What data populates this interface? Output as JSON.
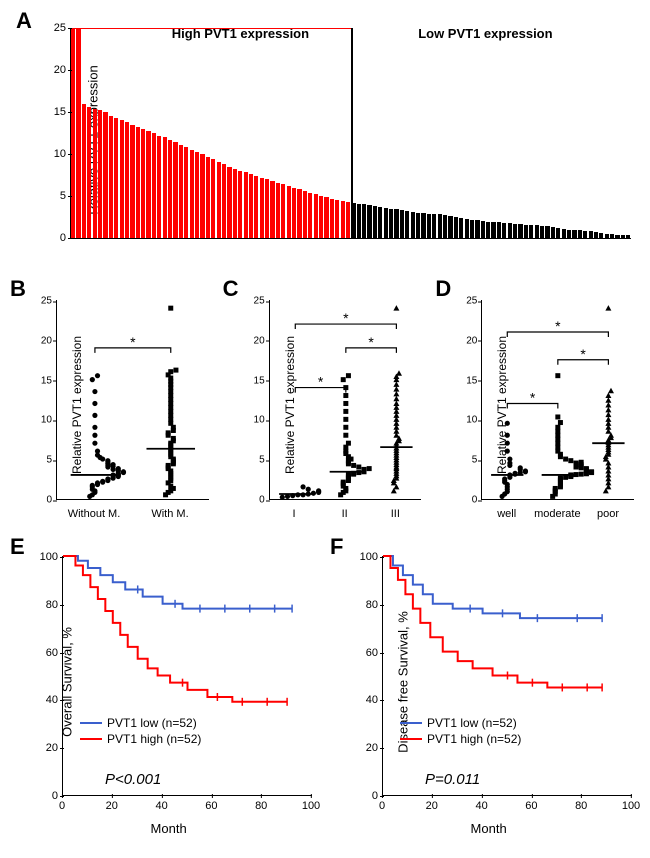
{
  "colors": {
    "high": "#ff0000",
    "low": "#000000",
    "blue": "#3a5fcd",
    "red": "#ff0000",
    "axis": "#000000",
    "bg": "#ffffff"
  },
  "panelA": {
    "label": "A",
    "ylabel": "Relative PVT1 expression",
    "ylim": [
      0,
      25
    ],
    "yticks": [
      0,
      5,
      10,
      15,
      20,
      25
    ],
    "group_high_label": "High PVT1 expression",
    "group_low_label": "Low PVT1 expression",
    "bars_high": [
      30,
      25,
      16,
      15.6,
      15.4,
      15.2,
      15,
      14.5,
      14.3,
      14,
      13.8,
      13.5,
      13.2,
      13,
      12.7,
      12.5,
      12.2,
      12,
      11.7,
      11.4,
      11.1,
      10.8,
      10.5,
      10.2,
      10,
      9.7,
      9.4,
      9.1,
      8.8,
      8.5,
      8.2,
      8,
      7.8,
      7.6,
      7.4,
      7.2,
      7,
      6.8,
      6.6,
      6.4,
      6.2,
      6,
      5.8,
      5.6,
      5.4,
      5.2,
      5,
      4.85,
      4.7,
      4.55,
      4.4,
      4.3
    ],
    "bars_low": [
      4.2,
      4.1,
      4,
      3.9,
      3.8,
      3.7,
      3.6,
      3.5,
      3.4,
      3.3,
      3.2,
      3.1,
      3,
      2.95,
      2.9,
      2.85,
      2.8,
      2.7,
      2.6,
      2.5,
      2.4,
      2.3,
      2.2,
      2.1,
      2,
      1.95,
      1.9,
      1.85,
      1.8,
      1.75,
      1.7,
      1.65,
      1.6,
      1.55,
      1.5,
      1.45,
      1.4,
      1.3,
      1.2,
      1.1,
      1,
      0.95,
      0.9,
      0.85,
      0.8,
      0.7,
      0.6,
      0.5,
      0.45,
      0.4,
      0.35,
      0.3
    ]
  },
  "panelB": {
    "label": "B",
    "ylabel": "Relative PVT1 expression",
    "ylim": [
      0,
      25
    ],
    "yticks": [
      0,
      5,
      10,
      15,
      20,
      25
    ],
    "groups": [
      "Without M.",
      "With M."
    ],
    "markers": [
      "circle",
      "square"
    ],
    "medians": [
      3.0,
      6.3
    ],
    "sigbars": [
      {
        "from": 0,
        "to": 1,
        "y": 19,
        "label": "*"
      }
    ],
    "points": {
      "Without M.": [
        0.3,
        0.5,
        0.8,
        1,
        1.2,
        1.5,
        1.7,
        1.8,
        2,
        2.1,
        2.2,
        2.3,
        2.4,
        2.5,
        2.6,
        2.7,
        2.8,
        2.9,
        3,
        3,
        3.1,
        3.2,
        3.3,
        3.4,
        3.5,
        3.6,
        3.7,
        3.8,
        4,
        4.1,
        4.2,
        4.3,
        4.4,
        4.5,
        4.7,
        4.8,
        5,
        5.2,
        5.5,
        6,
        7,
        8,
        9,
        10.5,
        12,
        13.5,
        15,
        15.5
      ],
      "With M.": [
        0.5,
        0.8,
        1,
        1.3,
        1.6,
        2,
        2.3,
        2.6,
        2.9,
        3.2,
        3.5,
        3.8,
        4,
        4.2,
        4.4,
        4.6,
        4.8,
        5,
        5.3,
        5.6,
        5.9,
        6.2,
        6.5,
        6.8,
        7,
        7.3,
        7.6,
        8,
        8.3,
        8.6,
        9,
        9.5,
        10,
        10.5,
        11,
        11.5,
        12,
        12.5,
        13,
        13.5,
        14,
        14.4,
        14.8,
        15.2,
        15.6,
        16,
        16.2,
        24
      ]
    }
  },
  "panelC": {
    "label": "C",
    "ylabel": "Relative PVT1 expression",
    "ylim": [
      0,
      25
    ],
    "yticks": [
      0,
      5,
      10,
      15,
      20,
      25
    ],
    "groups": [
      "I",
      "II",
      "III"
    ],
    "markers": [
      "circle",
      "square",
      "triangle"
    ],
    "medians": [
      0.6,
      3.4,
      6.5
    ],
    "sigbars": [
      {
        "from": 0,
        "to": 1,
        "y": 14,
        "label": "*"
      },
      {
        "from": 1,
        "to": 2,
        "y": 19,
        "label": "*"
      },
      {
        "from": 0,
        "to": 2,
        "y": 22,
        "label": "*"
      }
    ],
    "points": {
      "I": [
        0.2,
        0.3,
        0.4,
        0.5,
        0.5,
        0.6,
        0.7,
        0.8,
        0.9,
        1,
        1.2,
        1.5
      ],
      "II": [
        0.5,
        0.8,
        1,
        1.3,
        1.6,
        1.9,
        2.1,
        2.3,
        2.5,
        2.7,
        2.9,
        3,
        3.1,
        3.2,
        3.3,
        3.4,
        3.5,
        3.6,
        3.7,
        3.8,
        4,
        4.2,
        4.4,
        4.6,
        4.8,
        5,
        5.3,
        5.7,
        6,
        6.5,
        7,
        8,
        9,
        10,
        11,
        12,
        13,
        14,
        15,
        15.5
      ],
      "III": [
        1,
        1.5,
        2,
        2.3,
        2.6,
        2.9,
        3.2,
        3.5,
        3.8,
        4,
        4.3,
        4.6,
        4.9,
        5.2,
        5.5,
        5.8,
        6.1,
        6.4,
        6.7,
        7,
        7.3,
        7.6,
        8,
        8.5,
        9,
        9.5,
        10,
        10.5,
        11,
        11.5,
        12,
        12.6,
        13.2,
        13.8,
        14.4,
        15,
        15.4,
        15.8,
        24
      ]
    }
  },
  "panelD": {
    "label": "D",
    "ylabel": "Relative PVT1 expression",
    "ylim": [
      0,
      25
    ],
    "yticks": [
      0,
      5,
      10,
      15,
      20,
      25
    ],
    "groups": [
      "well",
      "moderate",
      "poor"
    ],
    "markers": [
      "circle",
      "square",
      "triangle"
    ],
    "medians": [
      3.0,
      3.0,
      7.0
    ],
    "sigbars": [
      {
        "from": 0,
        "to": 1,
        "y": 12,
        "label": "*"
      },
      {
        "from": 1,
        "to": 2,
        "y": 17.5,
        "label": "*"
      },
      {
        "from": 0,
        "to": 2,
        "y": 21,
        "label": "*"
      }
    ],
    "points": {
      "well": [
        0.3,
        0.6,
        0.9,
        1.2,
        1.5,
        1.8,
        2.1,
        2.3,
        2.5,
        2.7,
        2.9,
        3,
        3.1,
        3.2,
        3.3,
        3.4,
        3.5,
        3.7,
        3.9,
        4.2,
        4.5,
        5,
        6,
        7,
        8,
        9.5
      ],
      "moderate": [
        0.3,
        0.6,
        0.9,
        1.1,
        1.3,
        1.5,
        1.7,
        1.9,
        2.1,
        2.3,
        2.5,
        2.6,
        2.7,
        2.8,
        2.9,
        3,
        3.05,
        3.1,
        3.15,
        3.2,
        3.3,
        3.4,
        3.5,
        3.6,
        3.7,
        3.8,
        3.9,
        4,
        4.1,
        4.2,
        4.3,
        4.4,
        4.5,
        4.6,
        4.8,
        5,
        5.3,
        5.6,
        6,
        6.5,
        7,
        7.5,
        8,
        8.5,
        9,
        9.6,
        10.3,
        15.5
      ],
      "poor": [
        1,
        1.5,
        2,
        2.5,
        3,
        3.5,
        4,
        4.5,
        5,
        5.3,
        5.6,
        5.9,
        6.2,
        6.5,
        6.8,
        7.1,
        7.4,
        7.7,
        8,
        8.5,
        9,
        9.5,
        10,
        10.6,
        11.2,
        11.8,
        12.4,
        13,
        13.6,
        24
      ]
    }
  },
  "panelE": {
    "label": "E",
    "ylabel": "Overall Survival, %",
    "xlabel": "Month",
    "xlim": [
      0,
      100
    ],
    "xticks": [
      0,
      20,
      40,
      60,
      80,
      100
    ],
    "ylim": [
      0,
      100
    ],
    "yticks": [
      0,
      20,
      40,
      60,
      80,
      100
    ],
    "legend": [
      {
        "label": "PVT1 low (n=52)",
        "color": "#3a5fcd"
      },
      {
        "label": "PVT1 high (n=52)",
        "color": "#ff0000"
      }
    ],
    "pvalue": "P<0.001",
    "curve_low": [
      [
        0,
        100
      ],
      [
        6,
        100
      ],
      [
        6,
        98
      ],
      [
        10,
        98
      ],
      [
        10,
        95
      ],
      [
        15,
        95
      ],
      [
        15,
        92
      ],
      [
        20,
        92
      ],
      [
        20,
        89
      ],
      [
        25,
        89
      ],
      [
        25,
        86
      ],
      [
        32,
        86
      ],
      [
        32,
        83
      ],
      [
        40,
        83
      ],
      [
        40,
        80
      ],
      [
        48,
        80
      ],
      [
        48,
        78
      ],
      [
        60,
        78
      ],
      [
        80,
        78
      ],
      [
        92,
        78
      ]
    ],
    "curve_high": [
      [
        0,
        100
      ],
      [
        5,
        100
      ],
      [
        5,
        96
      ],
      [
        8,
        96
      ],
      [
        8,
        92
      ],
      [
        11,
        92
      ],
      [
        11,
        87
      ],
      [
        14,
        87
      ],
      [
        14,
        82
      ],
      [
        17,
        82
      ],
      [
        17,
        77
      ],
      [
        20,
        77
      ],
      [
        20,
        72
      ],
      [
        23,
        72
      ],
      [
        23,
        67
      ],
      [
        26,
        67
      ],
      [
        26,
        62
      ],
      [
        30,
        62
      ],
      [
        30,
        57
      ],
      [
        34,
        57
      ],
      [
        34,
        53
      ],
      [
        38,
        53
      ],
      [
        38,
        50
      ],
      [
        43,
        50
      ],
      [
        43,
        47
      ],
      [
        50,
        47
      ],
      [
        50,
        44
      ],
      [
        58,
        44
      ],
      [
        58,
        41
      ],
      [
        68,
        41
      ],
      [
        68,
        39
      ],
      [
        80,
        39
      ],
      [
        90,
        39
      ]
    ],
    "censor_low": [
      [
        30,
        86
      ],
      [
        45,
        80
      ],
      [
        55,
        78
      ],
      [
        65,
        78
      ],
      [
        75,
        78
      ],
      [
        85,
        78
      ],
      [
        92,
        78
      ]
    ],
    "censor_high": [
      [
        48,
        47
      ],
      [
        62,
        41
      ],
      [
        72,
        39
      ],
      [
        82,
        39
      ],
      [
        90,
        39
      ]
    ]
  },
  "panelF": {
    "label": "F",
    "ylabel": "Disease free Survival, %",
    "xlabel": "Month",
    "xlim": [
      0,
      100
    ],
    "xticks": [
      0,
      20,
      40,
      60,
      80,
      100
    ],
    "ylim": [
      0,
      100
    ],
    "yticks": [
      0,
      20,
      40,
      60,
      80,
      100
    ],
    "legend": [
      {
        "label": "PVT1 low (n=52)",
        "color": "#3a5fcd"
      },
      {
        "label": "PVT1 high (n=52)",
        "color": "#ff0000"
      }
    ],
    "pvalue": "P=0.011",
    "curve_low": [
      [
        0,
        100
      ],
      [
        4,
        100
      ],
      [
        4,
        96
      ],
      [
        8,
        96
      ],
      [
        8,
        92
      ],
      [
        12,
        92
      ],
      [
        12,
        88
      ],
      [
        16,
        88
      ],
      [
        16,
        84
      ],
      [
        20,
        84
      ],
      [
        20,
        80
      ],
      [
        28,
        80
      ],
      [
        28,
        78
      ],
      [
        40,
        78
      ],
      [
        40,
        76
      ],
      [
        55,
        76
      ],
      [
        55,
        74
      ],
      [
        70,
        74
      ],
      [
        88,
        74
      ]
    ],
    "curve_high": [
      [
        0,
        100
      ],
      [
        3,
        100
      ],
      [
        3,
        95
      ],
      [
        6,
        95
      ],
      [
        6,
        90
      ],
      [
        9,
        90
      ],
      [
        9,
        84
      ],
      [
        12,
        84
      ],
      [
        12,
        78
      ],
      [
        15,
        78
      ],
      [
        15,
        72
      ],
      [
        19,
        72
      ],
      [
        19,
        66
      ],
      [
        24,
        66
      ],
      [
        24,
        60
      ],
      [
        30,
        60
      ],
      [
        30,
        56
      ],
      [
        36,
        56
      ],
      [
        36,
        53
      ],
      [
        44,
        53
      ],
      [
        44,
        50
      ],
      [
        54,
        50
      ],
      [
        54,
        47
      ],
      [
        66,
        47
      ],
      [
        66,
        45
      ],
      [
        80,
        45
      ],
      [
        88,
        45
      ]
    ],
    "censor_low": [
      [
        35,
        78
      ],
      [
        48,
        76
      ],
      [
        62,
        74
      ],
      [
        78,
        74
      ],
      [
        88,
        74
      ]
    ],
    "censor_high": [
      [
        50,
        50
      ],
      [
        60,
        47
      ],
      [
        72,
        45
      ],
      [
        82,
        45
      ],
      [
        88,
        45
      ]
    ]
  }
}
